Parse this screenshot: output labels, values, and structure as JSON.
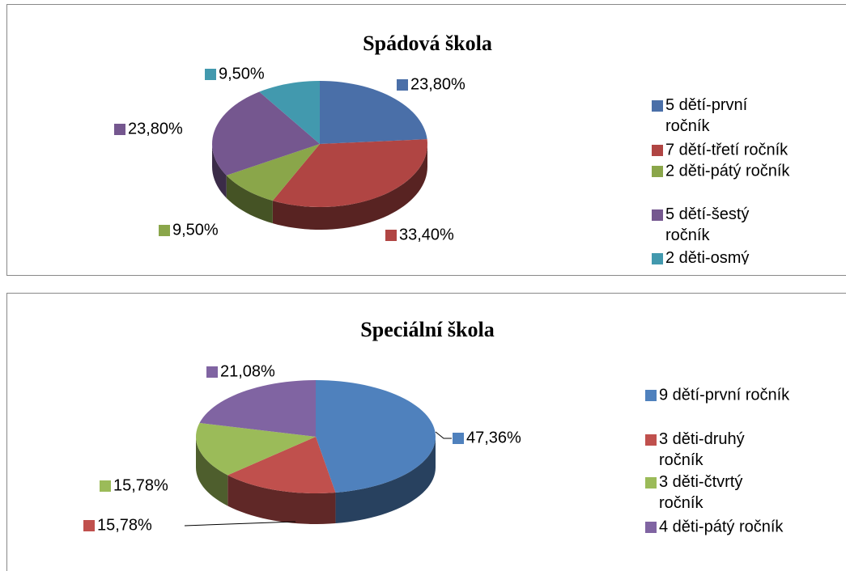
{
  "chart_data": [
    {
      "type": "pie",
      "title": "Spádová škola",
      "categories": [
        "5 dětí-první ročník",
        "7 dětí-třetí ročník",
        "2 děti-pátý ročník",
        "5 dětí-šestý ročník",
        "2 děti-osmý ročník"
      ],
      "values": [
        23.8,
        33.4,
        9.5,
        23.8,
        9.5
      ],
      "value_labels": [
        "23,80%",
        "33,40%",
        "9,50%",
        "23,80%",
        "9,50%"
      ],
      "colors": [
        "#4a6fa8",
        "#b04543",
        "#8aa64a",
        "#75578f",
        "#4299ae"
      ],
      "legend": "right"
    },
    {
      "type": "pie",
      "title": "Speciální škola",
      "categories": [
        "9 dětí-první ročník",
        "3 děti-druhý ročník",
        "3 děti-čtvrtý ročník",
        "4 děti-pátý ročník"
      ],
      "values": [
        47.36,
        15.78,
        15.78,
        21.08
      ],
      "value_labels": [
        "47,36%",
        "15,78%",
        "15,78%",
        "21,08%"
      ],
      "colors": [
        "#4f81bd",
        "#c0504d",
        "#9bbb59",
        "#8064a2"
      ],
      "legend": "right"
    }
  ]
}
